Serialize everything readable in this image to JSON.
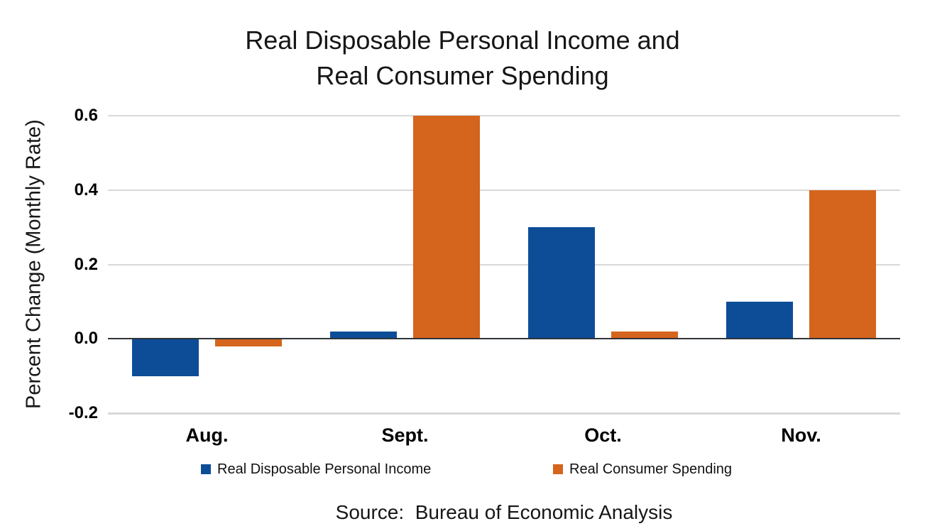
{
  "title": {
    "line1": "Real Disposable Personal Income and",
    "line2": "Real Consumer Spending"
  },
  "y_axis": {
    "title": "Percent Change (Monthly Rate)",
    "tick_labels": [
      "0.6",
      "0.4",
      "0.2",
      "0.0",
      "-0.2"
    ]
  },
  "x_axis": {
    "tick_labels": [
      "Aug.",
      "Sept.",
      "Oct.",
      "Nov."
    ]
  },
  "legend": {
    "items": [
      {
        "label": "Real Disposable Personal Income",
        "color": "#0D4D98"
      },
      {
        "label": "Real Consumer Spending",
        "color": "#D5641C"
      }
    ]
  },
  "source": "Source:  Bureau of Economic Analysis",
  "colors": {
    "income_blue": "#0D4D98",
    "spending_orange": "#D5641C",
    "gridline": "#D8D8D8",
    "zero_line": "#2F3438",
    "text": "#161616"
  },
  "chart_data": {
    "type": "bar",
    "title": "Real Disposable Personal Income and Real Consumer Spending",
    "categories": [
      "Aug.",
      "Sept.",
      "Oct.",
      "Nov."
    ],
    "series": [
      {
        "name": "Real Disposable Personal Income",
        "color": "#0D4D98",
        "values": [
          -0.1,
          0.02,
          0.3,
          0.1
        ]
      },
      {
        "name": "Real Consumer Spending",
        "color": "#D5641C",
        "values": [
          -0.02,
          0.6,
          0.02,
          0.4
        ]
      }
    ],
    "xlabel": "",
    "ylabel": "Percent Change (Monthly Rate)",
    "ylim": [
      -0.2,
      0.6
    ],
    "yticks": [
      0.6,
      0.4,
      0.2,
      0.0,
      -0.2
    ],
    "grid": true,
    "legend_position": "bottom",
    "source_label": "Source:  Bureau of Economic Analysis"
  }
}
